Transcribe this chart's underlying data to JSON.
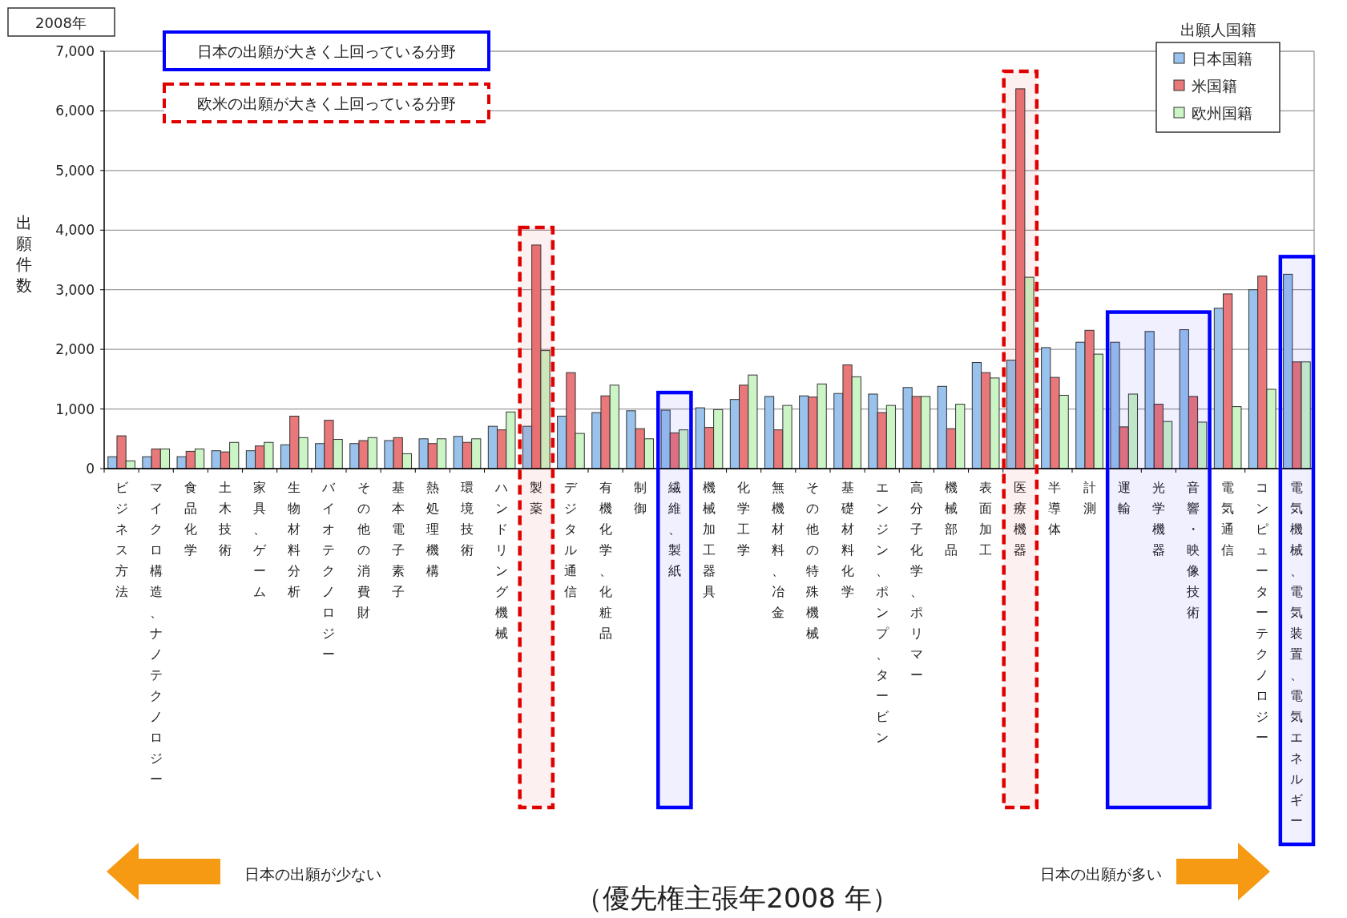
{
  "chart_data": {
    "type": "bar",
    "title": "2008年",
    "subtitle": "（優先権主張年2008 年）",
    "ylabel": "出願件数",
    "legend_title": "出願人国籍",
    "legend": "top right",
    "grid": "y",
    "categories": [
      "ビジネス方法",
      "マイクロ構造、ナノテクノロジー",
      "食品化学",
      "土木技術",
      "家具、ゲーム",
      "生物材料分析",
      "バイオテクノロジー",
      "その他の消費財",
      "基本電子素子",
      "熱処理機構",
      "環境技術",
      "ハンドリング機械",
      "製薬",
      "デジタル通信",
      "有機化学、化粧品",
      "制御",
      "繊維、製紙",
      "機械加工器具",
      "化学工学",
      "無機材料、冶金",
      "その他の特殊機械",
      "基礎材料化学",
      "エンジン、ポンプ、タービン",
      "高分子化学、ポリマー",
      "機械部品",
      "表面加工",
      "医療機器",
      "半導体",
      "計測",
      "運輸",
      "光学機器",
      "音響・映像技術",
      "電気通信",
      "コンピューターテクノロジー",
      "電気機械、電気装置、電気エネルギー"
    ],
    "series": [
      {
        "name": "日本国籍",
        "color": "#99c2ec",
        "values": [
          200,
          200,
          200,
          300,
          300,
          400,
          420,
          420,
          470,
          500,
          540,
          710,
          710,
          880,
          940,
          970,
          980,
          1020,
          1160,
          1210,
          1220,
          1260,
          1250,
          1360,
          1380,
          1780,
          1820,
          2030,
          2120,
          2120,
          2300,
          2330,
          2690,
          3000,
          3260
        ]
      },
      {
        "name": "米国籍",
        "color": "#e8787a",
        "values": [
          550,
          330,
          290,
          280,
          380,
          880,
          810,
          470,
          520,
          420,
          440,
          650,
          3750,
          1610,
          1220,
          670,
          600,
          690,
          1400,
          650,
          1200,
          1740,
          940,
          1210,
          670,
          1610,
          6370,
          1530,
          2320,
          700,
          1080,
          1210,
          2930,
          3230,
          1790
        ]
      },
      {
        "name": "欧州国籍",
        "color": "#ccf5c6",
        "values": [
          130,
          330,
          330,
          440,
          440,
          520,
          490,
          520,
          250,
          500,
          500,
          950,
          1980,
          590,
          1400,
          500,
          650,
          990,
          1570,
          1060,
          1420,
          1540,
          1060,
          1210,
          1080,
          1520,
          3210,
          1230,
          1920,
          1250,
          790,
          780,
          1040,
          1330,
          1790
        ]
      }
    ],
    "ylim": [
      0,
      7000
    ],
    "yticks": [
      0,
      {
        "value": 1000,
        "label": "1,000"
      },
      {
        "value": 2000,
        "label": "2,000"
      },
      {
        "value": 3000,
        "label": "3,000"
      },
      {
        "value": 4000,
        "label": "4,000"
      },
      {
        "value": 5000,
        "label": "5,000"
      },
      {
        "value": 6000,
        "label": "6,000"
      },
      {
        "value": 7000,
        "label": "7,000"
      }
    ],
    "bands": [
      {
        "axis": "x",
        "from": "繊維、製紙",
        "to": "繊維、製紙",
        "color": "#0000ff"
      },
      {
        "axis": "x",
        "from": "運輸",
        "to": "音響・映像技術",
        "color": "#0000ff"
      },
      {
        "axis": "x",
        "from": "電気機械、電気装置、電気エネルギー",
        "to": "電気機械、電気装置、電気エネルギー",
        "color": "#0000ff"
      },
      {
        "axis": "x",
        "from": "製薬",
        "to": "製薬",
        "color": "#e00000"
      },
      {
        "axis": "x",
        "from": "医療機器",
        "to": "医療機器",
        "color": "#e00000"
      }
    ],
    "annotations": [
      "日本の出願が大きく上回っている分野",
      "欧米の出願が大きく上回っている分野",
      "日本の出願が少ない",
      "日本の出願が多い"
    ]
  }
}
